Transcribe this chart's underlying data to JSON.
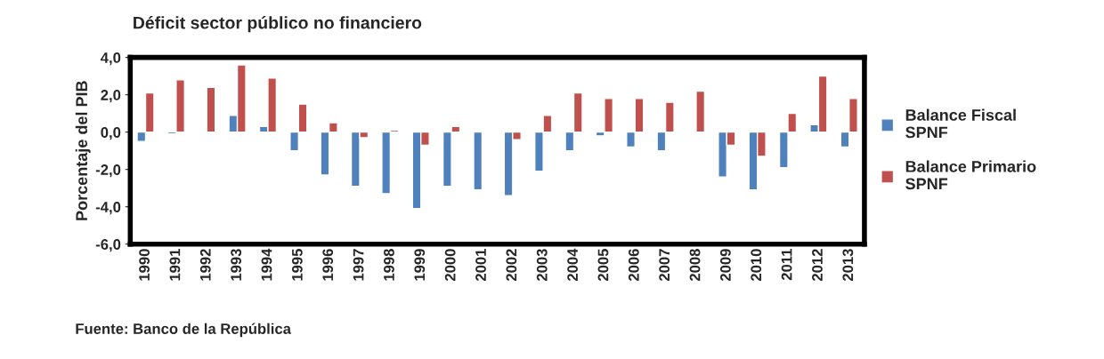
{
  "chart_data": {
    "type": "bar",
    "title": "Déficit sector público no financiero",
    "ylabel": "Porcentaje del PIB",
    "categories": [
      "1990",
      "1991",
      "1992",
      "1993",
      "1994",
      "1995",
      "1996",
      "1997",
      "1998",
      "1999",
      "2000",
      "2001",
      "2002",
      "2003",
      "2004",
      "2005",
      "2006",
      "2007",
      "2008",
      "2009",
      "2010",
      "2011",
      "2012",
      "2013"
    ],
    "series": [
      {
        "name": "Balance Fiscal\nSPNF",
        "color": "#4f81bd",
        "values": [
          -0.5,
          -0.1,
          null,
          0.9,
          0.3,
          -1.0,
          -2.3,
          -2.9,
          -3.3,
          -4.1,
          -2.9,
          -3.1,
          -3.4,
          -2.1,
          -1.0,
          -0.2,
          -0.8,
          -1.0,
          null,
          -2.4,
          -3.1,
          -1.9,
          0.4,
          -0.8
        ]
      },
      {
        "name": "Balance Primario\nSPNF",
        "color": "#c0504d",
        "values": [
          2.1,
          2.8,
          2.4,
          3.6,
          2.9,
          1.5,
          0.5,
          -0.3,
          0.1,
          -0.7,
          0.3,
          null,
          -0.4,
          0.9,
          2.1,
          1.8,
          1.8,
          1.6,
          2.2,
          -0.7,
          -1.3,
          1.0,
          3.0,
          1.8
        ]
      }
    ],
    "ylim": [
      -6,
      4
    ],
    "yticks": [
      {
        "value": -6,
        "label": "-6,0"
      },
      {
        "value": -4,
        "label": "-4,0"
      },
      {
        "value": -2,
        "label": "-2,0"
      },
      {
        "value": 0,
        "label": "0,0"
      },
      {
        "value": 2,
        "label": "2,0"
      },
      {
        "value": 4,
        "label": "4,0"
      }
    ],
    "grid": false,
    "legend": "right",
    "annotations": [
      "Fuente: Banco de la República"
    ]
  }
}
